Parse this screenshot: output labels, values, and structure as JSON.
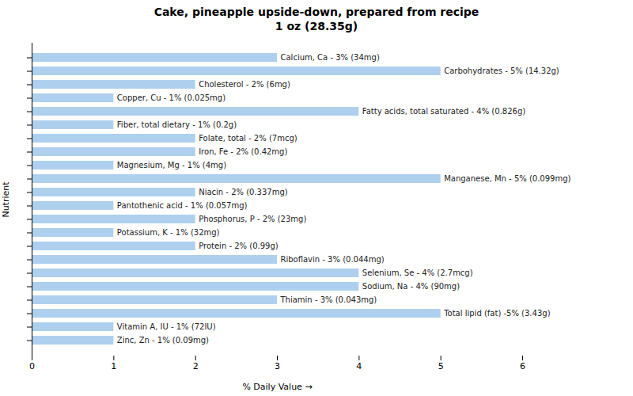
{
  "chart_data": {
    "type": "bar",
    "orientation": "horizontal",
    "title": "Cake, pineapple upside-down, prepared from recipe\n1 oz (28.35g)",
    "xlabel": "% Daily Value",
    "ylabel": "Nutrient",
    "categories": [
      "Calcium, Ca - 3% (34mg)",
      "Carbohydrates - 5% (14.32g)",
      "Cholesterol - 2% (6mg)",
      "Copper, Cu - 1% (0.025mg)",
      "Fatty acids, total saturated - 4% (0.826g)",
      "Fiber, total dietary - 1% (0.2g)",
      "Folate, total - 2% (7mcg)",
      "Iron, Fe - 2% (0.42mg)",
      "Magnesium, Mg - 1% (4mg)",
      "Manganese, Mn - 5% (0.099mg)",
      "Niacin - 2% (0.337mg)",
      "Pantothenic acid - 1% (0.057mg)",
      "Phosphorus, P - 2% (23mg)",
      "Potassium, K - 1% (32mg)",
      "Protein - 2% (0.99g)",
      "Riboflavin - 3% (0.044mg)",
      "Selenium, Se - 4% (2.7mcg)",
      "Sodium, Na - 4% (90mg)",
      "Thiamin - 3% (0.043mg)",
      "Total lipid (fat) -5% (3.43g)",
      "Vitamin A, IU - 1% (72IU)",
      "Zinc, Zn - 1% (0.09mg)"
    ],
    "values": [
      3,
      5,
      2,
      1,
      4,
      1,
      2,
      2,
      1,
      5,
      2,
      1,
      2,
      1,
      2,
      3,
      4,
      4,
      3,
      5,
      1,
      1
    ],
    "color": "#aed0ee",
    "xlim": [
      0,
      6
    ],
    "xticks": [
      0,
      1,
      2,
      3,
      4,
      5,
      6
    ],
    "tick_labels": "x",
    "grid": false
  }
}
